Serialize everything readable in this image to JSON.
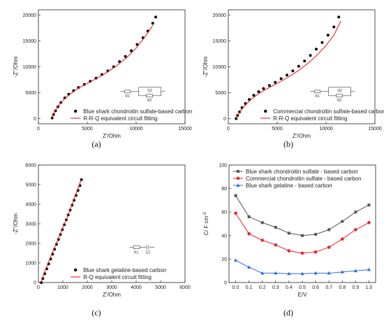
{
  "chart_data": [
    {
      "id": "a",
      "type": "scatter",
      "caption": "(a)",
      "xlabel": "Z'/Ohm",
      "ylabel": "-Z''/Ohm",
      "xlim": [
        0,
        15000
      ],
      "ylim": [
        -1000,
        21000
      ],
      "xticks": [
        0,
        5000,
        10000,
        15000
      ],
      "yticks": [
        0,
        5000,
        10000,
        15000,
        20000
      ],
      "legend_position": "bottom-right",
      "series": [
        {
          "name": "Blue shark chondroitin sulfate-based carbon",
          "kind": "markers",
          "marker": "circle",
          "color": "#000000",
          "x": [
            1400,
            1550,
            1750,
            2000,
            2300,
            2700,
            3100,
            3600,
            4100,
            4700,
            5300,
            5900,
            6500,
            7100,
            7700,
            8300,
            8900,
            9500,
            10100,
            10700,
            11200,
            11700,
            12000
          ],
          "y": [
            100,
            800,
            1500,
            2300,
            3100,
            4000,
            4700,
            5400,
            6000,
            6600,
            7200,
            7800,
            8500,
            9200,
            10000,
            11000,
            12000,
            13100,
            14300,
            15600,
            16900,
            18400,
            19600
          ]
        },
        {
          "name": "R-R-Q equivalent circuit fitting",
          "kind": "line",
          "color": "#e8232a",
          "x": [
            1300,
            1600,
            2000,
            2600,
            3300,
            4100,
            5000,
            6000,
            7000,
            8000,
            9000,
            10000,
            11000,
            11700
          ],
          "y": [
            0,
            1200,
            2400,
            3700,
            4800,
            5900,
            6800,
            7800,
            8900,
            10200,
            11700,
            13600,
            16000,
            18000
          ]
        }
      ],
      "circuit_labels": [
        "R1",
        "Q2",
        "R2"
      ]
    },
    {
      "id": "b",
      "type": "scatter",
      "caption": "(b)",
      "xlabel": "Z'/Ohm",
      "ylabel": "-Z''/Ohm",
      "xlim": [
        0,
        15000
      ],
      "ylim": [
        -1000,
        21000
      ],
      "xticks": [
        0,
        5000,
        10000,
        15000
      ],
      "yticks": [
        0,
        5000,
        10000,
        15000,
        20000
      ],
      "legend_position": "bottom-right",
      "series": [
        {
          "name": "Commercial chondroitin sulfate-based carbon",
          "kind": "markers",
          "marker": "circle",
          "color": "#000000",
          "x": [
            800,
            950,
            1150,
            1400,
            1750,
            2150,
            2600,
            3100,
            3600,
            4200,
            4800,
            5400,
            6000,
            6600,
            7200,
            7800,
            8400,
            9000,
            9600,
            10200,
            10800,
            11300
          ],
          "y": [
            0,
            600,
            1300,
            2100,
            2900,
            3700,
            4500,
            5200,
            5800,
            6400,
            7000,
            7700,
            8400,
            9200,
            10100,
            11100,
            12200,
            13400,
            14700,
            16100,
            17700,
            19600
          ]
        },
        {
          "name": "R-R-Q equivalent circuit fitting",
          "kind": "line",
          "color": "#e8232a",
          "x": [
            800,
            1100,
            1500,
            2100,
            2800,
            3600,
            4500,
            5400,
            6300,
            7200,
            8100,
            9000,
            9900,
            10800,
            11500
          ],
          "y": [
            0,
            1000,
            2100,
            3300,
            4400,
            5400,
            6300,
            7200,
            8200,
            9300,
            10600,
            12100,
            13900,
            16100,
            18800
          ]
        }
      ],
      "circuit_labels": [
        "R1",
        "Q2",
        "R2"
      ]
    },
    {
      "id": "c",
      "type": "scatter",
      "caption": "(c)",
      "xlabel": "Z'/Ohm",
      "ylabel": "-Z''/Ohm",
      "xlim": [
        0,
        6000
      ],
      "ylim": [
        0,
        6000
      ],
      "xticks": [
        0,
        1000,
        2000,
        3000,
        4000,
        5000,
        6000
      ],
      "yticks": [
        0,
        1000,
        2000,
        3000,
        4000,
        5000,
        6000
      ],
      "legend_position": "bottom-right",
      "series": [
        {
          "name": "Blue shark gelatine-based carbon",
          "kind": "markers",
          "marker": "circle",
          "color": "#000000",
          "x": [
            120,
            180,
            260,
            340,
            420,
            500,
            580,
            660,
            740,
            820,
            900,
            980,
            1060,
            1140,
            1220,
            1300,
            1380,
            1460,
            1540,
            1620,
            1700,
            1760
          ],
          "y": [
            0,
            200,
            450,
            700,
            950,
            1200,
            1450,
            1700,
            1950,
            2200,
            2450,
            2700,
            2950,
            3200,
            3450,
            3700,
            3950,
            4200,
            4450,
            4700,
            4950,
            5250
          ]
        },
        {
          "name": "R-Q equivalent circuit fitting",
          "kind": "line",
          "color": "#e8232a",
          "x": [
            100,
            300,
            600,
            900,
            1200,
            1500,
            1750
          ],
          "y": [
            0,
            700,
            1600,
            2500,
            3400,
            4400,
            5250
          ]
        }
      ],
      "circuit_labels": [
        "R1",
        "Q1"
      ]
    },
    {
      "id": "d",
      "type": "line",
      "caption": "(d)",
      "xlabel": "E/V",
      "ylabel": "C/ F cm",
      "ylabel_sup": "-2",
      "xlim": [
        -0.05,
        1.05
      ],
      "ylim": [
        0,
        100
      ],
      "xticks": [
        "0.0",
        "0.1",
        "0.2",
        "0.3",
        "0.4",
        "0.5",
        "0.6",
        "0.7",
        "0.8",
        "0.9",
        "1.0"
      ],
      "yticks": [
        0,
        20,
        40,
        60,
        80,
        100
      ],
      "legend_position": "top-left",
      "x": [
        0.0,
        0.1,
        0.2,
        0.3,
        0.4,
        0.5,
        0.6,
        0.7,
        0.8,
        0.9,
        1.0
      ],
      "series": [
        {
          "name": "Blue shark chondroitin sulfate - based carbon",
          "marker": "square",
          "color": "#555555",
          "values": [
            74,
            56,
            51,
            47,
            42,
            40,
            41,
            45,
            52,
            60,
            66
          ]
        },
        {
          "name": "Commercial chondroitin sulfate - based carbon",
          "marker": "circle",
          "color": "#e8232a",
          "values": [
            59,
            41.5,
            36,
            32,
            27,
            25,
            26,
            30,
            37,
            45,
            51
          ]
        },
        {
          "name": "Blue shark gelatine - based carbon",
          "marker": "triangle",
          "color": "#2f6fdc",
          "values": [
            19,
            13,
            8,
            8,
            7.5,
            7.5,
            8,
            8,
            9,
            10,
            11
          ]
        }
      ]
    }
  ]
}
